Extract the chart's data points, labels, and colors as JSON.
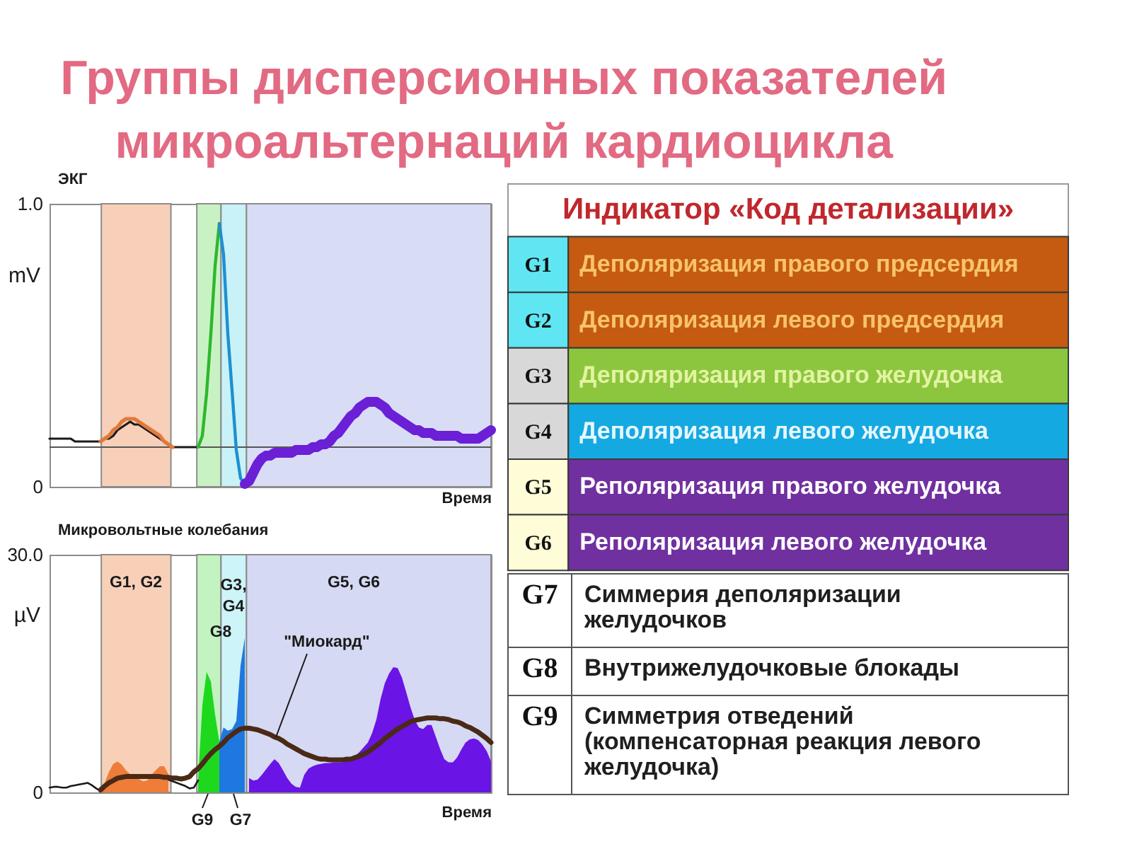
{
  "chart_data": [
    {
      "type": "line",
      "title": "Группы дисперсионных показателей микроальтернаций кардиоцикла",
      "subtitle": "ЭКГ",
      "xlabel": "Время",
      "ylabel": "mV",
      "tick_labels": "y",
      "categories": [
        null,
        null,
        null,
        null,
        null,
        null,
        null,
        null,
        null,
        null,
        null,
        null,
        null,
        null,
        null,
        null,
        null,
        null,
        null,
        null,
        null,
        null,
        null,
        null,
        null,
        null,
        null,
        null,
        null,
        null,
        null,
        null,
        null,
        null,
        null,
        null,
        null,
        null,
        null,
        null,
        null,
        null,
        null,
        null,
        null,
        null,
        null,
        null,
        null,
        null,
        null,
        null,
        null,
        null,
        null,
        null,
        null,
        null,
        null,
        null,
        null,
        null,
        null,
        null,
        null,
        null,
        null,
        null,
        null,
        null,
        null,
        null,
        null,
        null,
        null,
        null,
        null,
        null,
        null,
        null,
        null,
        null,
        null,
        null,
        null,
        null,
        null,
        null,
        null,
        null,
        null,
        null,
        null,
        null,
        null,
        null,
        null,
        null,
        null,
        null,
        null,
        null,
        null,
        null,
        null
      ],
      "ylim": [
        0,
        1
      ],
      "yticks": [
        0,
        {
          "value": 1,
          "label": "1.0"
        }
      ],
      "ref_lines": [
        {
          "axis": "y",
          "value": 0.14,
          "color": "#555555"
        }
      ],
      "series": [
        {
          "color": "#1a1a1a",
          "values": [
            0.17,
            0.17,
            0.17,
            0.17,
            0.17,
            0.17,
            0.16,
            0.16,
            0.16,
            0.16,
            0.16,
            0.16,
            0.16,
            0.17,
            0.17,
            0.18,
            0.2,
            0.21,
            0.22,
            0.23,
            0.22,
            0.22,
            0.21,
            0.2,
            0.19,
            0.18,
            0.17,
            0.16,
            0.15,
            0.14,
            0.14,
            0.14,
            0.14,
            0.14,
            0.14,
            0.14,
            null,
            null,
            null,
            null,
            null,
            null,
            null,
            null,
            null,
            null,
            null,
            null,
            null,
            null,
            null,
            null,
            null,
            null,
            null,
            null,
            null,
            null,
            null,
            null,
            null,
            null,
            null,
            null,
            null,
            null,
            null,
            null,
            null,
            null,
            null,
            null,
            null,
            null,
            null,
            null,
            null,
            null,
            null,
            null,
            null,
            null,
            null,
            null,
            null,
            null,
            null,
            null,
            null,
            null,
            null,
            null,
            null,
            null,
            null,
            null,
            null,
            null,
            null,
            null,
            null,
            null,
            null,
            null,
            null
          ]
        },
        {
          "color": "#e07a3c",
          "values": [
            null,
            null,
            null,
            null,
            null,
            null,
            null,
            null,
            null,
            null,
            null,
            null,
            0.16,
            0.17,
            0.18,
            0.2,
            0.21,
            0.23,
            0.24,
            0.24,
            0.24,
            0.23,
            0.22,
            0.21,
            0.2,
            0.19,
            0.18,
            0.16,
            0.15,
            0.14,
            null,
            null,
            null,
            null,
            null,
            null,
            null,
            null,
            null,
            null,
            null,
            null,
            null,
            null,
            null,
            null,
            null,
            null,
            null,
            null,
            null,
            null,
            null,
            null,
            null,
            null,
            null,
            null,
            null,
            null,
            null,
            null,
            null,
            null,
            null,
            null,
            null,
            null,
            null,
            null,
            null,
            null,
            null,
            null,
            null,
            null,
            null,
            null,
            null,
            null,
            null,
            null,
            null,
            null,
            null,
            null,
            null,
            null,
            null,
            null,
            null,
            null,
            null,
            null,
            null,
            null,
            null,
            null,
            null,
            null,
            null,
            null,
            null,
            null,
            null
          ]
        },
        {
          "color": "#2db82d",
          "values": [
            null,
            null,
            null,
            null,
            null,
            null,
            null,
            null,
            null,
            null,
            null,
            null,
            null,
            null,
            null,
            null,
            null,
            null,
            null,
            null,
            null,
            null,
            null,
            null,
            null,
            null,
            null,
            null,
            null,
            null,
            null,
            null,
            null,
            null,
            null,
            0.14,
            0.18,
            0.33,
            0.54,
            0.78,
            0.93,
            null,
            null,
            null,
            null,
            null,
            null,
            null,
            null,
            null,
            null,
            null,
            null,
            null,
            null,
            null,
            null,
            null,
            null,
            null,
            null,
            null,
            null,
            null,
            null,
            null,
            null,
            null,
            null,
            null,
            null,
            null,
            null,
            null,
            null,
            null,
            null,
            null,
            null,
            null,
            null,
            null,
            null,
            null,
            null,
            null,
            null,
            null,
            null,
            null,
            null,
            null,
            null,
            null,
            null,
            null,
            null,
            null,
            null,
            null,
            null,
            null,
            null,
            null,
            null
          ]
        },
        {
          "color": "#1f8fd0",
          "values": [
            null,
            null,
            null,
            null,
            null,
            null,
            null,
            null,
            null,
            null,
            null,
            null,
            null,
            null,
            null,
            null,
            null,
            null,
            null,
            null,
            null,
            null,
            null,
            null,
            null,
            null,
            null,
            null,
            null,
            null,
            null,
            null,
            null,
            null,
            null,
            null,
            null,
            null,
            null,
            null,
            0.93,
            0.82,
            0.54,
            0.34,
            0.13,
            0.03,
            0.01,
            null,
            null,
            null,
            null,
            null,
            null,
            null,
            null,
            null,
            null,
            null,
            null,
            null,
            null,
            null,
            null,
            null,
            null,
            null,
            null,
            null,
            null,
            null,
            null,
            null,
            null,
            null,
            null,
            null,
            null,
            null,
            null,
            null,
            null,
            null,
            null,
            null,
            null,
            null,
            null,
            null,
            null,
            null,
            null,
            null,
            null,
            null,
            null,
            null,
            null,
            null,
            null,
            null,
            null,
            null,
            null,
            null,
            null
          ]
        },
        {
          "color": "#6b1fd6",
          "values": [
            null,
            null,
            null,
            null,
            null,
            null,
            null,
            null,
            null,
            null,
            null,
            null,
            null,
            null,
            null,
            null,
            null,
            null,
            null,
            null,
            null,
            null,
            null,
            null,
            null,
            null,
            null,
            null,
            null,
            null,
            null,
            null,
            null,
            null,
            null,
            null,
            null,
            null,
            null,
            null,
            null,
            null,
            null,
            null,
            null,
            null,
            0.01,
            0.02,
            0.05,
            0.08,
            0.1,
            0.11,
            0.11,
            0.12,
            0.12,
            0.12,
            0.12,
            0.12,
            0.13,
            0.13,
            0.13,
            0.13,
            0.14,
            0.14,
            0.15,
            0.15,
            0.16,
            0.18,
            0.19,
            0.21,
            0.23,
            0.25,
            0.26,
            0.28,
            0.29,
            0.3,
            0.3,
            0.3,
            0.29,
            0.28,
            0.26,
            0.25,
            0.24,
            0.23,
            0.22,
            0.21,
            0.2,
            0.2,
            0.19,
            0.19,
            0.19,
            0.18,
            0.18,
            0.18,
            0.18,
            0.18,
            0.18,
            0.17,
            0.17,
            0.17,
            0.17,
            0.17,
            0.18,
            0.19,
            0.2
          ]
        }
      ]
    },
    {
      "type": "area",
      "title": "Микровольтные колебания",
      "xlabel": "Время",
      "ylabel": "µV",
      "tick_labels": "y",
      "categories": [
        null,
        null,
        null,
        null,
        null,
        null,
        null,
        null,
        null,
        null,
        null,
        null,
        null,
        null,
        null,
        null,
        null,
        null,
        null,
        null,
        null,
        null,
        null,
        null,
        null,
        null,
        null,
        null,
        null,
        null,
        null,
        null,
        null,
        null,
        null,
        null,
        null,
        null,
        null,
        null,
        null,
        null,
        null,
        null,
        null,
        null,
        null,
        null,
        null,
        null,
        null,
        null,
        null,
        null,
        null,
        null,
        null,
        null,
        null,
        null,
        null,
        null,
        null,
        null,
        null,
        null,
        null,
        null,
        null,
        null,
        null,
        null,
        null,
        null,
        null,
        null,
        null,
        null,
        null,
        null,
        null,
        null,
        null,
        null,
        null,
        null,
        null,
        null,
        null,
        null,
        null,
        null,
        null,
        null,
        null,
        null,
        null,
        null,
        null,
        null,
        null,
        null,
        null,
        null,
        null
      ],
      "ylim": [
        0,
        30
      ],
      "yticks": [
        0,
        {
          "value": 30,
          "label": "30.0"
        }
      ],
      "annotations": [
        "G1, G2",
        "G3, G4",
        "G5, G6",
        "G8",
        "\"Миокард\"",
        "G9",
        "G7"
      ],
      "series": [
        {
          "color": "#ee7d3a",
          "values": [
            null,
            null,
            null,
            null,
            null,
            null,
            null,
            null,
            null,
            null,
            null,
            null,
            0,
            1.2,
            2.6,
            3.6,
            3.9,
            3.5,
            2.8,
            2.3,
            2.0,
            1.7,
            1.4,
            1.5,
            2.2,
            2.8,
            3.3,
            3.3,
            2.3,
            null,
            null,
            null,
            null,
            null,
            null,
            null,
            null,
            null,
            null,
            null,
            null,
            null,
            null,
            null,
            null,
            null,
            null,
            null,
            null,
            null,
            null,
            null,
            null,
            null,
            null,
            null,
            null,
            null,
            null,
            null,
            null,
            null,
            null,
            null,
            null,
            null,
            null,
            null,
            null,
            null,
            null,
            null,
            null,
            null,
            null,
            null,
            null,
            null,
            null,
            null,
            null,
            null,
            null,
            null,
            null,
            null,
            null,
            null,
            null,
            null,
            null,
            null,
            null,
            null,
            null,
            null,
            null,
            null,
            null,
            null,
            null,
            null,
            null,
            null,
            null
          ]
        },
        {
          "color": "#1ed81e",
          "values": [
            null,
            null,
            null,
            null,
            null,
            null,
            null,
            null,
            null,
            null,
            null,
            null,
            null,
            null,
            null,
            null,
            null,
            null,
            null,
            null,
            null,
            null,
            null,
            null,
            null,
            null,
            null,
            null,
            null,
            null,
            null,
            null,
            null,
            null,
            null,
            1.5,
            11,
            15.2,
            14,
            9.8,
            6.4,
            null,
            null,
            null,
            null,
            null,
            null,
            null,
            null,
            null,
            null,
            null,
            null,
            null,
            null,
            null,
            null,
            null,
            null,
            null,
            null,
            null,
            null,
            null,
            null,
            null,
            null,
            null,
            null,
            null,
            null,
            null,
            null,
            null,
            null,
            null,
            null,
            null,
            null,
            null,
            null,
            null,
            null,
            null,
            null,
            null,
            null,
            null,
            null,
            null,
            null,
            null,
            null,
            null,
            null,
            null,
            null,
            null,
            null,
            null,
            null,
            null,
            null,
            null,
            null
          ]
        },
        {
          "color": "#1f78e0",
          "values": [
            null,
            null,
            null,
            null,
            null,
            null,
            null,
            null,
            null,
            null,
            null,
            null,
            null,
            null,
            null,
            null,
            null,
            null,
            null,
            null,
            null,
            null,
            null,
            null,
            null,
            null,
            null,
            null,
            null,
            null,
            null,
            null,
            null,
            null,
            null,
            null,
            null,
            null,
            null,
            null,
            6.4,
            8.2,
            7.8,
            8.0,
            9.0,
            16,
            19.5,
            null,
            null,
            null,
            null,
            null,
            null,
            null,
            null,
            null,
            null,
            null,
            null,
            null,
            null,
            null,
            null,
            null,
            null,
            null,
            null,
            null,
            null,
            null,
            null,
            null,
            null,
            null,
            null,
            null,
            null,
            null,
            null,
            null,
            null,
            null,
            null,
            null,
            null,
            null,
            null,
            null,
            null,
            null,
            null,
            null,
            null,
            null,
            null,
            null,
            null,
            null,
            null,
            null,
            null,
            null,
            null,
            null,
            null
          ]
        },
        {
          "color": "#6a14e6",
          "values": [
            null,
            null,
            null,
            null,
            null,
            null,
            null,
            null,
            null,
            null,
            null,
            null,
            null,
            null,
            null,
            null,
            null,
            null,
            null,
            null,
            null,
            null,
            null,
            null,
            null,
            null,
            null,
            null,
            null,
            null,
            null,
            null,
            null,
            null,
            null,
            null,
            null,
            null,
            null,
            null,
            null,
            null,
            null,
            null,
            null,
            null,
            null,
            1.8,
            1.5,
            1.6,
            2.2,
            2.9,
            3.6,
            4.2,
            3.7,
            2.8,
            1.8,
            1.1,
            0.7,
            0.6,
            2.2,
            3.0,
            3.3,
            3.5,
            3.6,
            3.7,
            3.7,
            3.8,
            3.8,
            3.8,
            4.0,
            4.3,
            4.6,
            5.1,
            5.7,
            6.3,
            7.5,
            9.2,
            11.8,
            13.8,
            15.0,
            15.8,
            15.7,
            14.5,
            12.7,
            10.8,
            9.2,
            8.2,
            8.0,
            8.5,
            8.5,
            7.0,
            5.5,
            4.2,
            3.8,
            3.8,
            4.4,
            5.4,
            6.3,
            6.7,
            6.8,
            6.6,
            6.0,
            5.2,
            3.9
          ]
        },
        {
          "type": "line",
          "color": "#1a1a1a",
          "values": [
            0.6,
            0.7,
            0.7,
            0.6,
            0.6,
            0.8,
            0.9,
            1.0,
            1.1,
            1.2,
            0.9,
            0.5,
            0.2,
            null,
            null,
            null,
            null,
            null,
            null,
            null,
            null,
            null,
            null,
            null,
            null,
            null,
            null,
            null,
            1.6,
            1.4,
            1.2,
            1.0,
            0.8,
            0.5,
            0.6,
            1.5,
            null,
            null,
            null,
            null,
            null,
            null,
            null,
            null,
            null,
            null,
            null,
            null,
            null,
            null,
            null,
            null,
            null,
            null,
            null,
            null,
            null,
            null,
            null,
            null,
            null,
            null,
            null,
            null,
            null,
            null,
            null,
            null,
            null,
            null,
            null,
            null,
            null,
            null,
            null,
            null,
            null,
            null,
            null,
            null,
            null,
            null,
            null,
            null,
            null,
            null,
            null,
            null,
            null,
            null,
            null,
            null,
            null,
            null,
            null,
            null,
            null,
            null,
            null,
            null,
            null,
            null,
            null,
            null,
            null
          ]
        },
        {
          "type": "line",
          "color": "#4a2a17",
          "values": [
            null,
            null,
            null,
            null,
            null,
            null,
            null,
            null,
            null,
            null,
            null,
            null,
            0.3,
            0.8,
            1.2,
            1.5,
            1.8,
            1.9,
            2.0,
            2.0,
            2.0,
            2.0,
            2.0,
            2.0,
            2.0,
            2.0,
            2.0,
            1.9,
            1.9,
            1.8,
            1.8,
            1.7,
            1.8,
            2.0,
            2.6,
            3.0,
            3.6,
            4.3,
            4.9,
            5.4,
            5.8,
            6.3,
            6.9,
            7.3,
            7.7,
            8.0,
            8.1,
            8.1,
            8.0,
            7.9,
            7.7,
            7.5,
            7.3,
            7.0,
            6.8,
            6.5,
            6.1,
            5.8,
            5.5,
            5.2,
            4.9,
            4.7,
            4.5,
            4.3,
            4.2,
            4.2,
            4.1,
            4.1,
            4.1,
            4.1,
            4.2,
            4.2,
            4.4,
            4.6,
            4.8,
            5.1,
            5.5,
            5.9,
            6.3,
            6.8,
            7.2,
            7.6,
            8.0,
            8.3,
            8.6,
            8.9,
            9.1,
            9.2,
            9.3,
            9.4,
            9.4,
            9.4,
            9.3,
            9.3,
            9.2,
            9.0,
            8.9,
            8.7,
            8.4,
            8.2,
            7.9,
            7.6,
            7.2,
            6.8,
            6.3
          ]
        }
      ]
    },
    {
      "type": "other",
      "title": "Индикатор «Код детализации»",
      "categories": [
        "G1",
        "G2",
        "G3",
        "G4",
        "G5",
        "G6",
        "G7",
        "G8",
        "G9"
      ],
      "annotations": [
        "Деполяризация правого предсердия",
        "Деполяризация левого предсердия",
        "Деполяризация правого желудочка",
        "Деполяризация левого желудочка",
        "Реполяризация правого желудочка",
        "Реполяризация левого желудочка",
        "Симмерия деполяризации желудочков",
        "Внутрижелудочковые блокады",
        "Симметрия отведений (компенсаторная реакция левого желудочка)"
      ]
    }
  ]
}
